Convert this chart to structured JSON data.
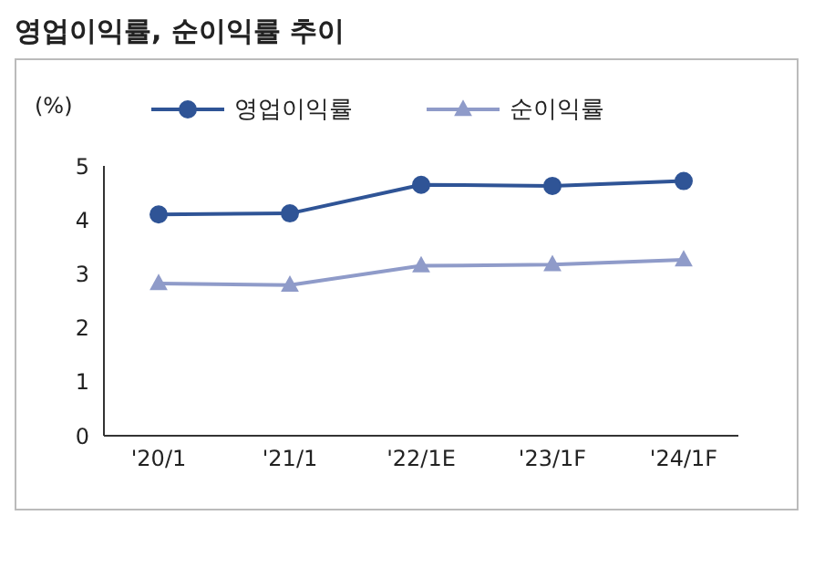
{
  "chart_data": {
    "type": "line",
    "title": "영업이익률, 순이익률 추이",
    "ylabel": "(%)",
    "categories": [
      "'20/1",
      "'21/1",
      "'22/1E",
      "'23/1F",
      "'24/1F"
    ],
    "series": [
      {
        "name": "영업이익률",
        "color": "#2f5496",
        "marker": "circle",
        "values": [
          4.1,
          4.12,
          4.65,
          4.63,
          4.72
        ]
      },
      {
        "name": "순이익률",
        "color": "#8f9bc9",
        "marker": "triangle",
        "values": [
          2.82,
          2.79,
          3.15,
          3.17,
          3.26
        ]
      }
    ],
    "ylim": [
      0,
      5
    ],
    "yticks": [
      0,
      1,
      2,
      3,
      4,
      5
    ],
    "legend": "top",
    "grid": false
  }
}
